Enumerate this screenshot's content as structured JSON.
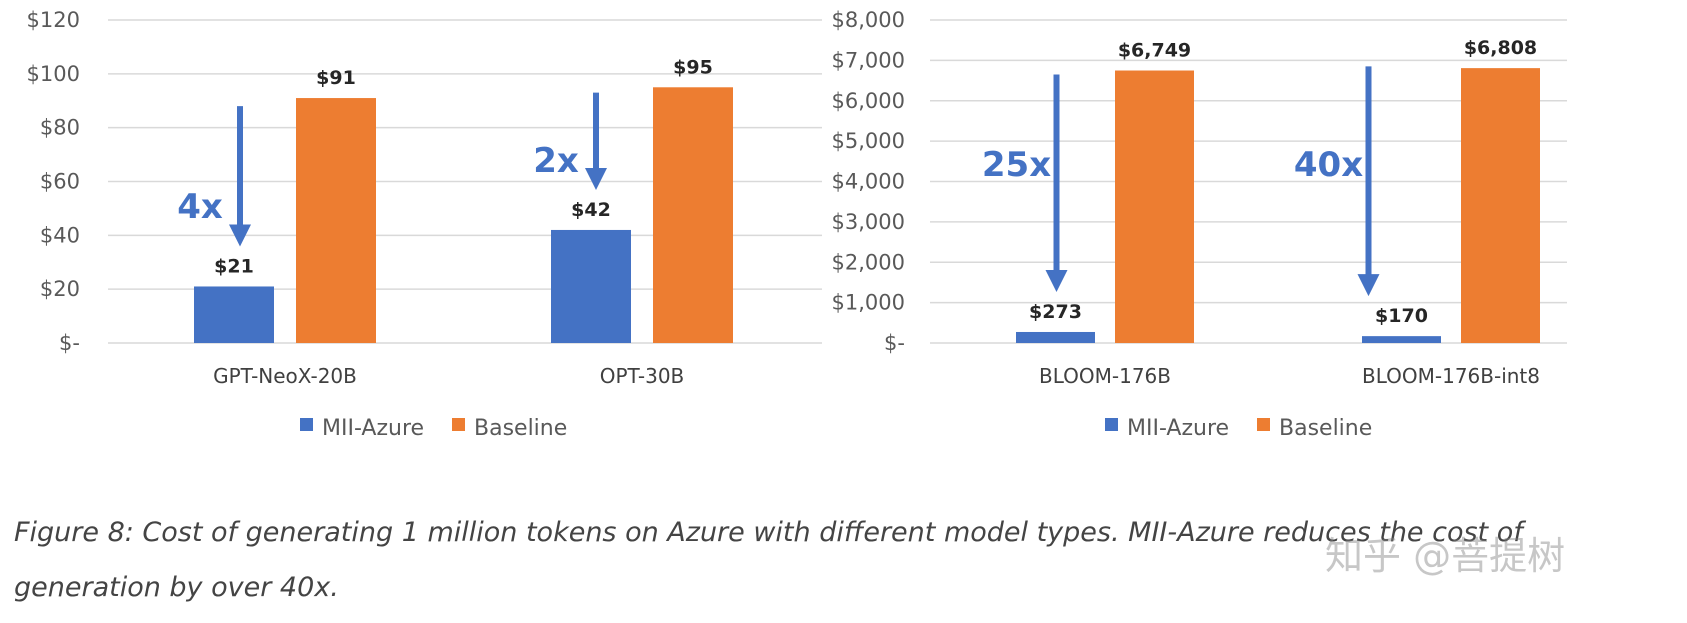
{
  "colors": {
    "mii": "#4472C4",
    "baseline": "#ED7D31",
    "grid": "#d9d9d9",
    "arrow": "#4472C4"
  },
  "chart_data": [
    {
      "type": "bar",
      "categories": [
        "GPT-NeoX-20B",
        "OPT-30B"
      ],
      "series": [
        {
          "name": "MII-Azure",
          "values": [
            21,
            42
          ],
          "labels": [
            "$21",
            "$42"
          ]
        },
        {
          "name": "Baseline",
          "values": [
            91,
            95
          ],
          "labels": [
            "$91",
            "$95"
          ]
        }
      ],
      "ylim": [
        0,
        120
      ],
      "yticks": [
        0,
        20,
        40,
        60,
        80,
        100,
        120
      ],
      "ytick_labels": [
        "$-",
        "$20",
        "$40",
        "$60",
        "$80",
        "$100",
        "$120"
      ],
      "grid": true,
      "legend": "bottom",
      "annotations": [
        {
          "text": "4x",
          "category": "GPT-NeoX-20B",
          "arrow_from": 88,
          "arrow_to": 21
        },
        {
          "text": "2x",
          "category": "OPT-30B",
          "arrow_from": 93,
          "arrow_to": 42
        }
      ]
    },
    {
      "type": "bar",
      "categories": [
        "BLOOM-176B",
        "BLOOM-176B-int8"
      ],
      "series": [
        {
          "name": "MII-Azure",
          "values": [
            273,
            170
          ],
          "labels": [
            "$273",
            "$170"
          ]
        },
        {
          "name": "Baseline",
          "values": [
            6749,
            6808
          ],
          "labels": [
            "$6,749",
            "$6,808"
          ]
        }
      ],
      "ylim": [
        0,
        8000
      ],
      "yticks": [
        0,
        1000,
        2000,
        3000,
        4000,
        5000,
        6000,
        7000,
        8000
      ],
      "ytick_labels": [
        "$-",
        "$1,000",
        "$2,000",
        "$3,000",
        "$4,000",
        "$5,000",
        "$6,000",
        "$7,000",
        "$8,000"
      ],
      "grid": true,
      "legend": "bottom",
      "annotations": [
        {
          "text": "25x",
          "category": "BLOOM-176B",
          "arrow_from": 6650,
          "arrow_to": 273
        },
        {
          "text": "40x",
          "category": "BLOOM-176B-int8",
          "arrow_from": 6850,
          "arrow_to": 170
        }
      ]
    }
  ],
  "caption": {
    "line1": "Figure 8: Cost of generating 1 million tokens on Azure with different model types. MII-Azure reduces the cost of",
    "line2": "generation by over 40x."
  },
  "watermark": "知乎 @菩提树"
}
